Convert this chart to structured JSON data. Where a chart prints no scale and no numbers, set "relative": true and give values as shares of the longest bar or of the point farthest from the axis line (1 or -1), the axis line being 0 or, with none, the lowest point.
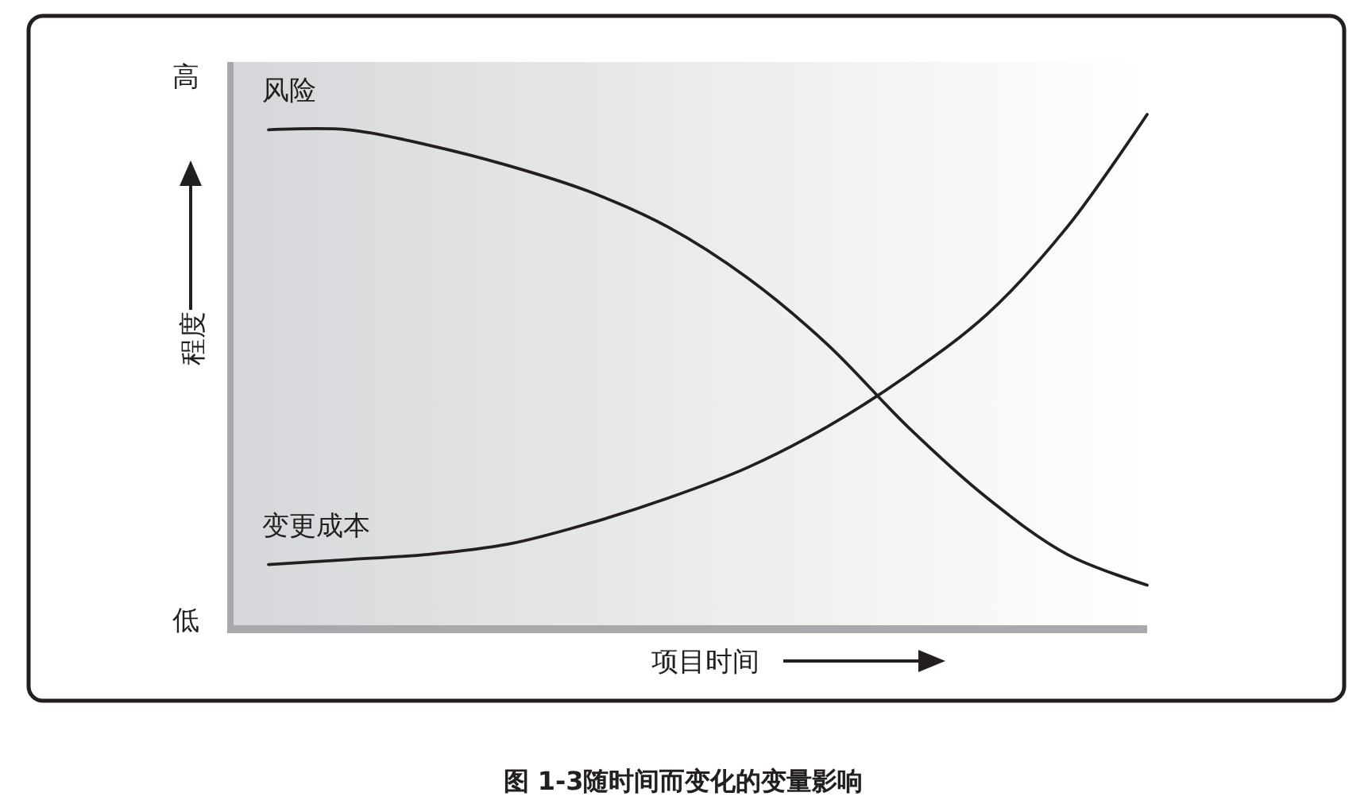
{
  "chart_data": {
    "type": "line",
    "relative": true,
    "xlabel": "项目时间",
    "ylabel": "程度",
    "categories": [
      null,
      null,
      null,
      null,
      null,
      null,
      null,
      null,
      null,
      null,
      null,
      null
    ],
    "series": [
      {
        "name": "风险",
        "color": "#231f20",
        "values": [
          0.97,
          0.97,
          0.94,
          0.9,
          0.85,
          0.78,
          0.68,
          0.55,
          0.39,
          0.25,
          0.14,
          0.08
        ]
      },
      {
        "name": "变更成本",
        "color": "#231f20",
        "values": [
          0.12,
          0.13,
          0.14,
          0.16,
          0.2,
          0.25,
          0.31,
          0.39,
          0.49,
          0.61,
          0.78,
          1
        ]
      }
    ],
    "line_style": "solid",
    "annotations": [
      "高",
      "低",
      "图 1-3随时间而变化的变量影响"
    ]
  }
}
